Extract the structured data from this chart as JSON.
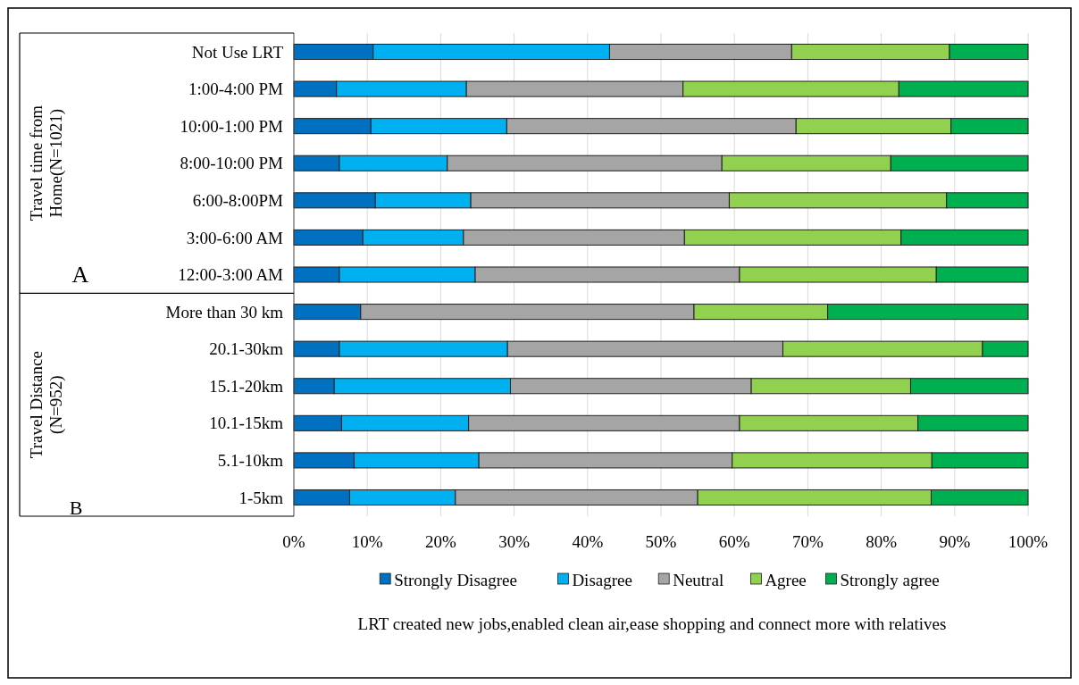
{
  "chart_data": {
    "type": "bar",
    "orientation": "horizontal",
    "stacked": true,
    "xlabel": "LRT created new jobs,enabled clean air,ease shopping and  connect more with relatives",
    "categories": [
      "Not Use LRT",
      "1:00-4:00 PM",
      "10:00-1:00 PM",
      "8:00-10:00 PM",
      "6:00-8:00PM",
      "3:00-6:00 AM",
      "12:00-3:00 AM",
      "More than 30 km",
      "20.1-30km",
      "15.1-20km",
      "10.1-15km",
      "5.1-10km",
      "1-5km"
    ],
    "series": [
      {
        "name": "Strongly Disagree",
        "color": "#0070c0",
        "values": [
          10.8,
          5.8,
          10.5,
          6.2,
          11.1,
          9.4,
          6.2,
          9.1,
          6.2,
          5.5,
          6.5,
          8.2,
          7.6
        ]
      },
      {
        "name": "Disagree",
        "color": "#00b0f0",
        "values": [
          32.2,
          17.7,
          18.5,
          14.7,
          13,
          13.7,
          18.5,
          0,
          22.9,
          24,
          17.3,
          17,
          14.4
        ]
      },
      {
        "name": "Neutral",
        "color": "#a5a5a5",
        "values": [
          24.8,
          29.5,
          39.4,
          37.4,
          35.2,
          30.1,
          36,
          45.4,
          37.5,
          32.8,
          36.9,
          34.5,
          33
        ]
      },
      {
        "name": "Agree",
        "color": "#92d050",
        "values": [
          21.5,
          29.4,
          21.1,
          23,
          29.6,
          29.5,
          26.8,
          18.2,
          27.2,
          21.7,
          24.3,
          27.2,
          31.8
        ]
      },
      {
        "name": "Strongly agree",
        "color": "#00b050",
        "values": [
          10.7,
          17.6,
          10.5,
          18.7,
          11.1,
          17.3,
          12.5,
          27.3,
          6.2,
          16,
          15,
          13.1,
          13.2
        ]
      }
    ],
    "xlim": [
      0,
      100
    ],
    "xticks": [
      {
        "value": 0,
        "label": "0%"
      },
      {
        "value": 10,
        "label": "10%"
      },
      {
        "value": 20,
        "label": "20%"
      },
      {
        "value": 30,
        "label": "30%"
      },
      {
        "value": 40,
        "label": "40%"
      },
      {
        "value": 50,
        "label": "50%"
      },
      {
        "value": 60,
        "label": "60%"
      },
      {
        "value": 70,
        "label": "70%"
      },
      {
        "value": 80,
        "label": "80%"
      },
      {
        "value": 90,
        "label": "90%"
      },
      {
        "value": 100,
        "label": "100%"
      }
    ],
    "grid": "x",
    "legend": "bottom",
    "annotations": [
      "Travel time from Home(N=1021)",
      "A",
      "Travel Distance (N=952)",
      "B"
    ]
  }
}
